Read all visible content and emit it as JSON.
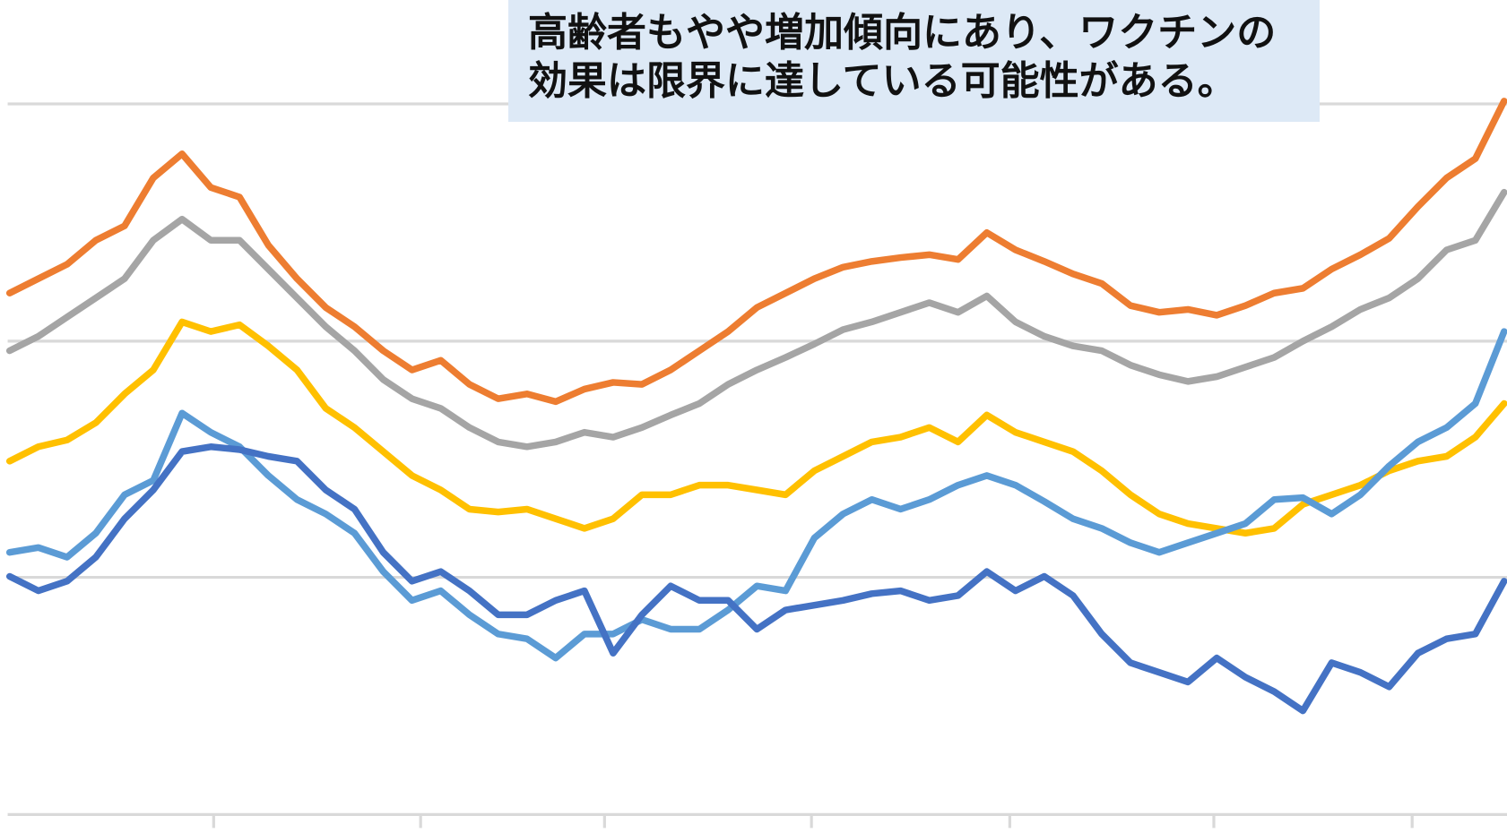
{
  "chart_data": {
    "type": "line",
    "annotation": "高齢者もやや増加傾向にあり、ワクチンの効果は限界に達している可能性がある。",
    "x": [
      0,
      1,
      2,
      3,
      4,
      5,
      6,
      7,
      8,
      9,
      10,
      11,
      12,
      13,
      14,
      15,
      16,
      17,
      18,
      19,
      20,
      21,
      22,
      23,
      24,
      25,
      26,
      27,
      28,
      29,
      30,
      31,
      32,
      33,
      34,
      35,
      36,
      37,
      38,
      39,
      40,
      41,
      42,
      43,
      44,
      45,
      46,
      47,
      48,
      49,
      50,
      51,
      52
    ],
    "xlim": [
      0,
      52
    ],
    "xticks": [
      7.1,
      14.3,
      20.7,
      27.9,
      34.8,
      41.9,
      48.8
    ],
    "ylim": [
      -19,
      848
    ],
    "yticks": [
      0,
      247,
      493,
      740
    ],
    "grid": true,
    "series": [
      {
        "color": "#ed7d31",
        "values": [
          543,
          558,
          573,
          598,
          613,
          663,
          688,
          653,
          643,
          593,
          558,
          528,
          508,
          483,
          463,
          473,
          448,
          433,
          438,
          430,
          443,
          450,
          448,
          463,
          483,
          503,
          528,
          543,
          558,
          570,
          576,
          580,
          583,
          578,
          606,
          588,
          576,
          563,
          553,
          530,
          523,
          526,
          520,
          530,
          543,
          548,
          568,
          583,
          600,
          633,
          663,
          683,
          743
        ]
      },
      {
        "color": "#a5a5a5",
        "values": [
          483,
          498,
          518,
          538,
          558,
          598,
          620,
          598,
          598,
          568,
          538,
          508,
          483,
          453,
          433,
          423,
          403,
          388,
          383,
          388,
          398,
          393,
          403,
          416,
          428,
          448,
          463,
          476,
          490,
          505,
          513,
          523,
          533,
          523,
          540,
          513,
          498,
          488,
          483,
          468,
          458,
          451,
          456,
          466,
          476,
          493,
          508,
          526,
          538,
          558,
          588,
          598,
          648
        ]
      },
      {
        "color": "#ffc000",
        "values": [
          368,
          383,
          390,
          408,
          438,
          463,
          513,
          503,
          510,
          488,
          463,
          423,
          403,
          378,
          353,
          338,
          318,
          315,
          318,
          308,
          298,
          308,
          333,
          333,
          343,
          343,
          338,
          333,
          358,
          373,
          388,
          393,
          403,
          388,
          416,
          398,
          388,
          378,
          358,
          333,
          313,
          303,
          298,
          293,
          298,
          323,
          333,
          343,
          358,
          368,
          373,
          393,
          428
        ]
      },
      {
        "color": "#5b9bd5",
        "values": [
          273,
          278,
          268,
          293,
          333,
          348,
          418,
          398,
          383,
          353,
          328,
          313,
          293,
          253,
          223,
          233,
          208,
          188,
          183,
          163,
          188,
          188,
          203,
          193,
          193,
          213,
          238,
          233,
          288,
          313,
          328,
          318,
          328,
          343,
          353,
          343,
          326,
          308,
          298,
          283,
          273,
          283,
          293,
          303,
          328,
          330,
          313,
          333,
          363,
          388,
          403,
          428,
          503
        ]
      },
      {
        "color": "#4472c4",
        "values": [
          248,
          233,
          243,
          268,
          308,
          338,
          378,
          383,
          380,
          373,
          368,
          338,
          318,
          273,
          243,
          253,
          233,
          208,
          208,
          223,
          233,
          168,
          208,
          238,
          223,
          223,
          193,
          213,
          218,
          223,
          230,
          233,
          223,
          228,
          253,
          233,
          248,
          228,
          188,
          158,
          148,
          138,
          163,
          143,
          128,
          108,
          158,
          148,
          133,
          168,
          183,
          188,
          243
        ]
      }
    ]
  }
}
